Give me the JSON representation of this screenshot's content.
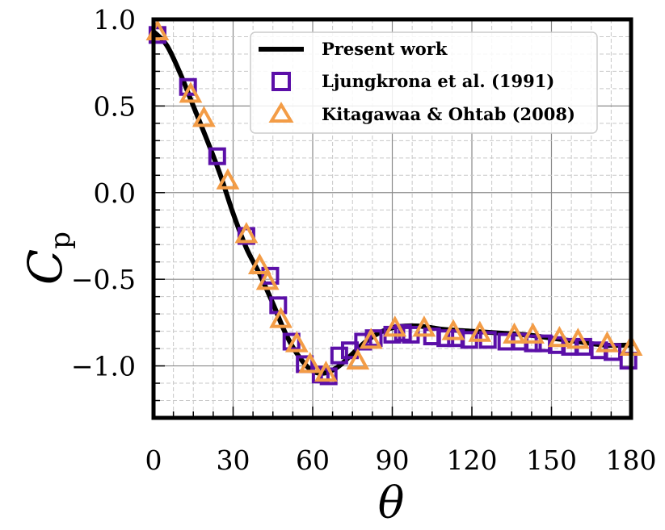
{
  "chart_data": {
    "type": "line",
    "title": "",
    "xlabel": "θ",
    "ylabel": "C",
    "ylabel_sub": "p",
    "xlim": [
      0,
      180
    ],
    "ylim": [
      -1.3,
      1.0
    ],
    "xticks": [
      0,
      30,
      60,
      90,
      120,
      150,
      180
    ],
    "xtick_labels": [
      "0",
      "30",
      "60",
      "90",
      "120",
      "150",
      "180"
    ],
    "yticks": [
      1.0,
      0.5,
      0.0,
      -0.5,
      -1.0
    ],
    "ytick_labels": [
      "1.0",
      "0.5",
      "0.0",
      "−0.5",
      "−1.0"
    ],
    "grid": true,
    "legend_position": "top-right",
    "colors": {
      "present": "#000000",
      "ljungkrona": "#5b0fa8",
      "kitagawa": "#f39c46"
    },
    "series": [
      {
        "name": "Present work",
        "kind": "line",
        "x": [
          0,
          5,
          10,
          15,
          20,
          25,
          30,
          35,
          40,
          45,
          50,
          55,
          60,
          65,
          70,
          75,
          80,
          85,
          90,
          95,
          100,
          105,
          110,
          120,
          130,
          140,
          150,
          160,
          170,
          180
        ],
        "y": [
          0.93,
          0.85,
          0.69,
          0.5,
          0.31,
          0.11,
          -0.12,
          -0.32,
          -0.47,
          -0.64,
          -0.82,
          -0.95,
          -1.03,
          -1.04,
          -1.0,
          -0.93,
          -0.86,
          -0.81,
          -0.78,
          -0.77,
          -0.77,
          -0.78,
          -0.79,
          -0.8,
          -0.81,
          -0.82,
          -0.84,
          -0.86,
          -0.88,
          -0.88
        ]
      },
      {
        "name": "Ljungkrona et al. (1991)",
        "kind": "square",
        "x": [
          1.5,
          13,
          24,
          35,
          44,
          47,
          52,
          57,
          63,
          66,
          70,
          74,
          79,
          83,
          90,
          94,
          97,
          105,
          110,
          114,
          119,
          126,
          133,
          138,
          143,
          147,
          152,
          157,
          162,
          168,
          173,
          179
        ],
        "y": [
          0.91,
          0.61,
          0.21,
          -0.25,
          -0.48,
          -0.65,
          -0.86,
          -0.99,
          -1.05,
          -1.06,
          -0.94,
          -0.91,
          -0.86,
          -0.84,
          -0.82,
          -0.81,
          -0.82,
          -0.83,
          -0.84,
          -0.84,
          -0.85,
          -0.85,
          -0.86,
          -0.86,
          -0.87,
          -0.87,
          -0.88,
          -0.89,
          -0.89,
          -0.91,
          -0.92,
          -0.97
        ]
      },
      {
        "name": "Kitagawaa & Ohtab (2008)",
        "kind": "triangle",
        "x": [
          1.5,
          14,
          19,
          28,
          35,
          40,
          43,
          48,
          54,
          59,
          65,
          77,
          82,
          91,
          102,
          113,
          123,
          136,
          143,
          153,
          160,
          171,
          180
        ],
        "y": [
          0.93,
          0.57,
          0.43,
          0.07,
          -0.24,
          -0.42,
          -0.51,
          -0.73,
          -0.87,
          -0.99,
          -1.04,
          -0.97,
          -0.85,
          -0.78,
          -0.78,
          -0.8,
          -0.81,
          -0.82,
          -0.82,
          -0.84,
          -0.85,
          -0.87,
          -0.89
        ]
      }
    ]
  }
}
